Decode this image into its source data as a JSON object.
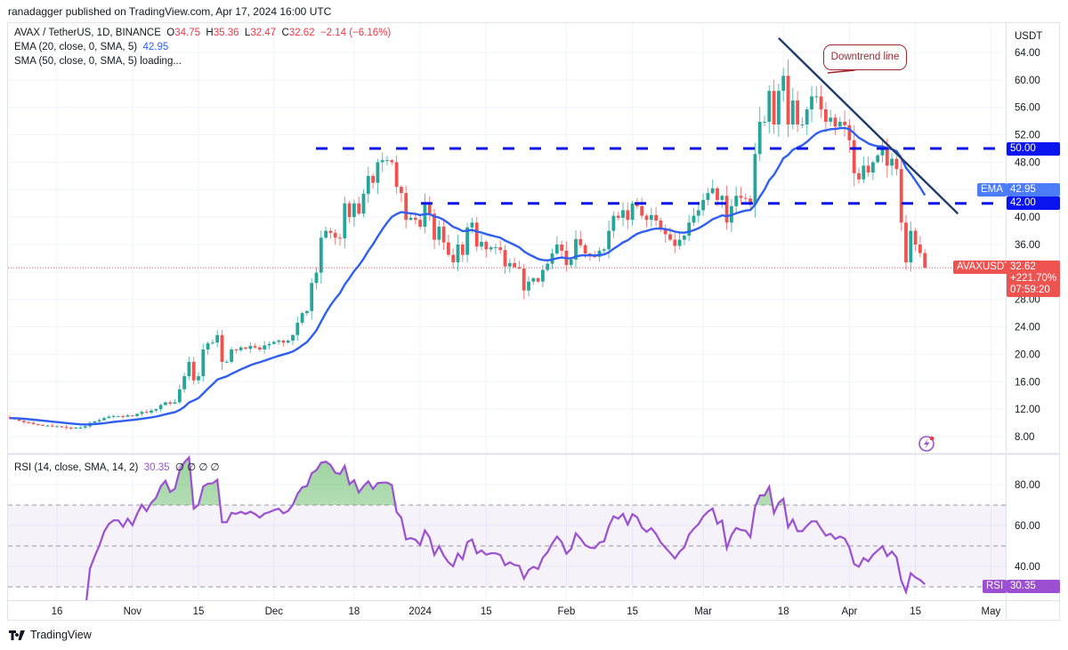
{
  "header": {
    "publisher": "ranadagger published on TradingView.com, Apr 17, 2024 16:00 UTC"
  },
  "legend": {
    "symbol": "AVAX / TetherUS, 1D, BINANCE",
    "o_label": "O",
    "o": "34.75",
    "h_label": "H",
    "h": "35.36",
    "l_label": "L",
    "l": "32.47",
    "c_label": "C",
    "c": "32.62",
    "change": "−2.14 (−6.16%)",
    "ema_label": "EMA (20, close, 0, SMA, 5)",
    "ema_value": "42.95",
    "sma_label": "SMA (50, close, 0, SMA, 5) loading..."
  },
  "rsi_legend": {
    "label": "RSI (14, close, SMA, 14, 2)",
    "value": "30.35",
    "extras": "∅  ∅  ∅  ∅"
  },
  "price_axis": {
    "currency": "USDT",
    "level_50": "50.00",
    "level_42": "42.00",
    "ema_tag": "EMA",
    "ema_value": "42.95",
    "symbol_tag": "AVAXUSDT",
    "last_price": "32.62",
    "last_change": "+221.70%",
    "countdown": "07:59:20"
  },
  "rsi_axis": {
    "tag": "RSI",
    "value": "30.35"
  },
  "annotation": {
    "text": "Downtrend line"
  },
  "footer": {
    "brand": "TradingView"
  },
  "colors": {
    "up": "#26a69a",
    "down": "#ef5350",
    "ema": "#2f5ff0",
    "levels": "#0a14f0",
    "trendline": "#1f3b6b",
    "rsi": "#9c4fd0",
    "annotation": "#a3262f"
  },
  "chart_data": {
    "type": "candlestick",
    "symbol": "AVAXUSDT",
    "interval": "1D",
    "first_day_offset": -10,
    "closes": [
      10.7,
      10.5,
      10.3,
      10.1,
      10.0,
      9.8,
      9.7,
      9.6,
      9.6,
      9.5,
      9.5,
      9.4,
      9.3,
      9.2,
      9.3,
      9.3,
      9.5,
      10.0,
      10.2,
      10.4,
      10.7,
      10.9,
      11.0,
      11.0,
      10.9,
      11.1,
      11.0,
      11.3,
      11.6,
      11.5,
      11.8,
      12.0,
      12.6,
      13.0,
      12.8,
      13.0,
      14.9,
      16.8,
      18.9,
      16.2,
      16.8,
      20.7,
      21.6,
      21.7,
      22.8,
      18.9,
      18.9,
      20.7,
      20.6,
      21.0,
      20.8,
      21.2,
      21.0,
      20.7,
      21.3,
      21.5,
      21.8,
      22.0,
      21.7,
      22.0,
      22.8,
      24.6,
      26.0,
      26.3,
      30.4,
      31.9,
      37.0,
      38.0,
      37.7,
      37.0,
      36.9,
      42.0,
      40.0,
      42.0,
      40.5,
      43.4,
      46.0,
      45.0,
      48.0,
      48.3,
      48.3,
      48.0,
      44.4,
      43.5,
      39.6,
      39.9,
      39.6,
      38.6,
      41.8,
      40.5,
      36.7,
      38.6,
      36.3,
      34.5,
      33.4,
      36.0,
      34.5,
      38.5,
      39.2,
      35.7,
      36.4,
      35.3,
      35.6,
      35.6,
      35.2,
      32.8,
      33.3,
      32.7,
      32.5,
      29.3,
      30.6,
      31.1,
      30.6,
      32.3,
      33.2,
      34.7,
      36.0,
      35.1,
      33.0,
      33.8,
      36.8,
      35.9,
      34.7,
      34.3,
      34.2,
      35.1,
      35.3,
      38.0,
      40.2,
      39.9,
      41.0,
      39.6,
      42.0,
      41.6,
      40.2,
      39.6,
      40.3,
      39.5,
      38.3,
      37.5,
      36.7,
      35.8,
      36.7,
      37.3,
      39.2,
      40.2,
      41.0,
      42.5,
      43.5,
      44.2,
      42.5,
      43.1,
      39.2,
      41.6,
      43.1,
      42.8,
      42.7,
      41.8,
      49.2,
      53.9,
      53.9,
      58.4,
      53.5,
      58.4,
      60.6,
      53.5,
      57.0,
      53.5,
      53.5,
      55.7,
      57.6,
      57.6,
      55.7,
      53.9,
      54.5,
      53.2,
      53.9,
      53.4,
      51.2,
      46.4,
      45.5,
      47.5,
      46.5,
      48.0,
      49.0,
      50.0,
      47.5,
      48.5,
      47.0,
      39.2,
      33.4,
      38.0,
      36.0,
      34.75,
      32.62
    ],
    "last_bar": {
      "o": 34.75,
      "h": 35.36,
      "l": 32.47,
      "c": 32.62
    },
    "ema_period": 20,
    "rsi_period": 14,
    "horizontal_levels": [
      50,
      42
    ],
    "trendline": {
      "start": [
        153,
        66.1
      ],
      "end": [
        191,
        40.5
      ]
    },
    "price_ticks": [
      64,
      60,
      56,
      52,
      48,
      40,
      36,
      28,
      24,
      20,
      16,
      12,
      8
    ],
    "price_range": [
      8,
      64
    ],
    "rsi_ticks": [
      80,
      60,
      40
    ],
    "rsi_bands": {
      "upper": 70,
      "middle": 50,
      "lower": 30
    },
    "time_ticks": [
      {
        "label": "16",
        "day": 0
      },
      {
        "label": "Nov",
        "day": 16
      },
      {
        "label": "15",
        "day": 30
      },
      {
        "label": "Dec",
        "day": 46
      },
      {
        "label": "18",
        "day": 63
      },
      {
        "label": "2024",
        "day": 77
      },
      {
        "label": "15",
        "day": 91
      },
      {
        "label": "Feb",
        "day": 108
      },
      {
        "label": "15",
        "day": 122
      },
      {
        "label": "Mar",
        "day": 137
      },
      {
        "label": "18",
        "day": 154
      },
      {
        "label": "Apr",
        "day": 168
      },
      {
        "label": "15",
        "day": 182
      },
      {
        "label": "May",
        "day": 198
      }
    ]
  }
}
